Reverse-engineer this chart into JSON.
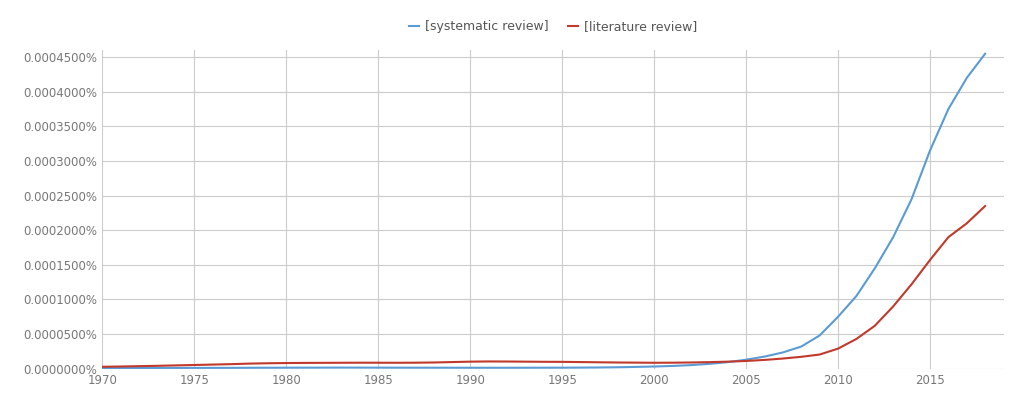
{
  "legend_labels": [
    "[systematic review]",
    "[literature review]"
  ],
  "line_color_systematic": "#5b9bd5",
  "line_color_literature": "#c0392b",
  "background_color": "#ffffff",
  "grid_color": "#cccccc",
  "xlim": [
    1970,
    2019
  ],
  "ylim": [
    0,
    4.6e-06
  ],
  "xticks": [
    1970,
    1975,
    1980,
    1985,
    1990,
    1995,
    2000,
    2005,
    2010,
    2015
  ],
  "ytick_step": 5e-07,
  "systematic_review": {
    "years": [
      1970,
      1971,
      1972,
      1973,
      1974,
      1975,
      1976,
      1977,
      1978,
      1979,
      1980,
      1981,
      1982,
      1983,
      1984,
      1985,
      1986,
      1987,
      1988,
      1989,
      1990,
      1991,
      1992,
      1993,
      1994,
      1995,
      1996,
      1997,
      1998,
      1999,
      2000,
      2001,
      2002,
      2003,
      2004,
      2005,
      2006,
      2007,
      2008,
      2009,
      2010,
      2011,
      2012,
      2013,
      2014,
      2015,
      2016,
      2017,
      2018
    ],
    "values": [
      1e-08,
      1.05e-08,
      1.1e-08,
      1.12e-08,
      1.15e-08,
      1.2e-08,
      1.22e-08,
      1.25e-08,
      1.35e-08,
      1.42e-08,
      1.48e-08,
      1.52e-08,
      1.58e-08,
      1.62e-08,
      1.6e-08,
      1.55e-08,
      1.5e-08,
      1.48e-08,
      1.45e-08,
      1.42e-08,
      1.4e-08,
      1.38e-08,
      1.38e-08,
      1.4e-08,
      1.45e-08,
      1.5e-08,
      1.6e-08,
      1.8e-08,
      2.1e-08,
      2.6e-08,
      3.2e-08,
      4e-08,
      5.2e-08,
      7e-08,
      9.5e-08,
      1.3e-07,
      1.75e-07,
      2.35e-07,
      3.2e-07,
      4.8e-07,
      7.5e-07,
      1.05e-06,
      1.45e-06,
      1.9e-06,
      2.45e-06,
      3.15e-06,
      3.75e-06,
      4.2e-06,
      4.55e-06
    ]
  },
  "literature_review": {
    "years": [
      1970,
      1971,
      1972,
      1973,
      1974,
      1975,
      1976,
      1977,
      1978,
      1979,
      1980,
      1981,
      1982,
      1983,
      1984,
      1985,
      1986,
      1987,
      1988,
      1989,
      1990,
      1991,
      1992,
      1993,
      1994,
      1995,
      1996,
      1997,
      1998,
      1999,
      2000,
      2001,
      2002,
      2003,
      2004,
      2005,
      2006,
      2007,
      2008,
      2009,
      2010,
      2011,
      2012,
      2013,
      2014,
      2015,
      2016,
      2017,
      2018
    ],
    "values": [
      2.8e-08,
      3.2e-08,
      3.7e-08,
      4.2e-08,
      4.8e-08,
      5.4e-08,
      6e-08,
      6.6e-08,
      7.4e-08,
      7.9e-08,
      8.2e-08,
      8.4e-08,
      8.5e-08,
      8.6e-08,
      8.7e-08,
      8.65e-08,
      8.6e-08,
      8.7e-08,
      9e-08,
      9.6e-08,
      1.02e-07,
      1.05e-07,
      1.04e-07,
      1.02e-07,
      1e-07,
      9.9e-08,
      9.6e-08,
      9.3e-08,
      9e-08,
      8.8e-08,
      8.6e-08,
      8.7e-08,
      9e-08,
      9.5e-08,
      1.02e-07,
      1.12e-07,
      1.27e-07,
      1.47e-07,
      1.72e-07,
      2.05e-07,
      2.9e-07,
      4.3e-07,
      6.2e-07,
      9e-07,
      1.22e-06,
      1.57e-06,
      1.9e-06,
      2.1e-06,
      2.35e-06
    ]
  }
}
